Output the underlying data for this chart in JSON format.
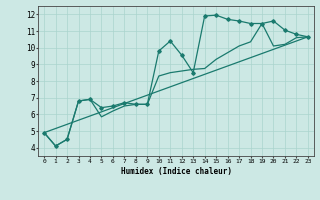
{
  "xlabel": "Humidex (Indice chaleur)",
  "ylabel": "",
  "bg_color": "#cce8e4",
  "grid_color": "#aad4ce",
  "line_color": "#1a7a6e",
  "xlim": [
    -0.5,
    23.5
  ],
  "ylim": [
    3.5,
    12.5
  ],
  "xticks": [
    0,
    1,
    2,
    3,
    4,
    5,
    6,
    7,
    8,
    9,
    10,
    11,
    12,
    13,
    14,
    15,
    16,
    17,
    18,
    19,
    20,
    21,
    22,
    23
  ],
  "yticks": [
    4,
    5,
    6,
    7,
    8,
    9,
    10,
    11,
    12
  ],
  "lines": [
    {
      "x": [
        0,
        1,
        2,
        3,
        4,
        5,
        6,
        7,
        8,
        9,
        10,
        11,
        12,
        13,
        14,
        15,
        16,
        17,
        18,
        19,
        20,
        21,
        22,
        23
      ],
      "y": [
        4.9,
        4.1,
        4.5,
        6.8,
        6.9,
        6.4,
        6.5,
        6.7,
        6.6,
        6.6,
        9.8,
        10.4,
        9.55,
        8.5,
        11.9,
        11.95,
        11.7,
        11.6,
        11.45,
        11.45,
        11.6,
        11.05,
        10.8,
        10.65
      ],
      "marker": "D",
      "markersize": 1.8,
      "linewidth": 0.9
    },
    {
      "x": [
        0,
        1,
        2,
        3,
        4,
        5,
        6,
        7,
        8,
        9,
        10,
        11,
        12,
        13,
        14,
        15,
        16,
        17,
        18,
        19,
        20,
        21,
        22,
        23
      ],
      "y": [
        4.9,
        4.1,
        4.5,
        6.8,
        6.9,
        5.85,
        6.2,
        6.5,
        6.6,
        6.6,
        8.3,
        8.5,
        8.6,
        8.7,
        8.75,
        9.3,
        9.7,
        10.1,
        10.35,
        11.45,
        10.1,
        10.2,
        10.6,
        10.65
      ],
      "marker": null,
      "markersize": 0,
      "linewidth": 0.9
    },
    {
      "x": [
        0,
        23
      ],
      "y": [
        4.9,
        10.65
      ],
      "marker": null,
      "markersize": 0,
      "linewidth": 0.9
    }
  ]
}
